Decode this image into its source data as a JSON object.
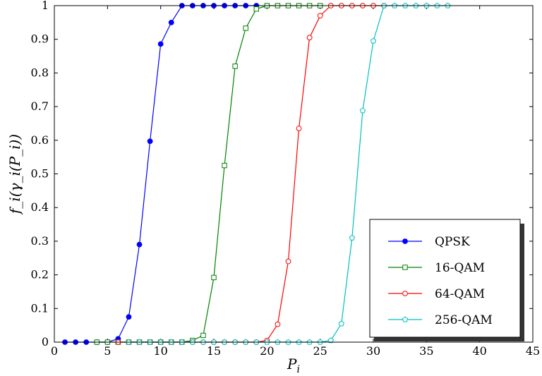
{
  "chart_data": {
    "type": "line",
    "title": "",
    "xlabel": "P",
    "xlabel_sub": "i",
    "ylabel": "f_i(γ_i(P_i))",
    "xlim": [
      0,
      45
    ],
    "ylim": [
      0,
      1
    ],
    "xticks": [
      "0",
      "5",
      "10",
      "15",
      "20",
      "25",
      "30",
      "35",
      "40",
      "45"
    ],
    "yticks": [
      "0",
      "0.1",
      "0.2",
      "0.3",
      "0.4",
      "0.5",
      "0.6",
      "0.7",
      "0.8",
      "0.9",
      "1"
    ],
    "grid": false,
    "legend_position": "bottom-right",
    "series": [
      {
        "name": "QPSK",
        "color": "#0000ff",
        "marker": "filled-circle",
        "x": [
          1,
          2,
          3,
          4,
          5,
          6,
          7,
          8,
          9,
          10,
          11,
          12,
          13,
          14,
          15,
          16,
          17,
          18,
          19
        ],
        "y": [
          0,
          0,
          0,
          0,
          0,
          0.01,
          0.075,
          0.29,
          0.597,
          0.886,
          0.95,
          1,
          1,
          1,
          1,
          1,
          1,
          1,
          1
        ]
      },
      {
        "name": "16-QAM",
        "color": "#008000",
        "marker": "open-square",
        "x": [
          4,
          5,
          6,
          7,
          8,
          9,
          10,
          11,
          12,
          13,
          14,
          15,
          16,
          17,
          18,
          19,
          20,
          21,
          22,
          23,
          24,
          25
        ],
        "y": [
          0,
          0,
          0,
          0,
          0,
          0,
          0,
          0,
          0,
          0.005,
          0.02,
          0.192,
          0.525,
          0.82,
          0.933,
          0.99,
          1,
          1,
          1,
          1,
          1,
          1
        ]
      },
      {
        "name": "64-QAM",
        "color": "#ff0000",
        "marker": "open-circle",
        "x": [
          6,
          7,
          8,
          9,
          10,
          11,
          12,
          13,
          14,
          15,
          16,
          17,
          18,
          19,
          20,
          21,
          22,
          23,
          24,
          25,
          26,
          27,
          28,
          29,
          30,
          31
        ],
        "y": [
          0,
          0,
          0,
          0,
          0,
          0,
          0,
          0,
          0,
          0,
          0,
          0,
          0,
          0,
          0.005,
          0.053,
          0.24,
          0.635,
          0.905,
          0.97,
          1,
          1,
          1,
          1,
          1,
          1
        ]
      },
      {
        "name": "256-QAM",
        "color": "#00bfbf",
        "marker": "open-pentagon",
        "x": [
          7,
          8,
          9,
          10,
          11,
          12,
          13,
          14,
          15,
          16,
          17,
          18,
          19,
          20,
          21,
          22,
          23,
          24,
          25,
          26,
          27,
          28,
          29,
          30,
          31,
          32,
          33,
          34,
          35,
          36,
          37
        ],
        "y": [
          0,
          0,
          0,
          0,
          0,
          0,
          0,
          0,
          0,
          0,
          0,
          0,
          0,
          0,
          0,
          0,
          0,
          0,
          0,
          0.005,
          0.055,
          0.31,
          0.688,
          0.895,
          1,
          1,
          1,
          1,
          1,
          1,
          1
        ]
      }
    ]
  }
}
